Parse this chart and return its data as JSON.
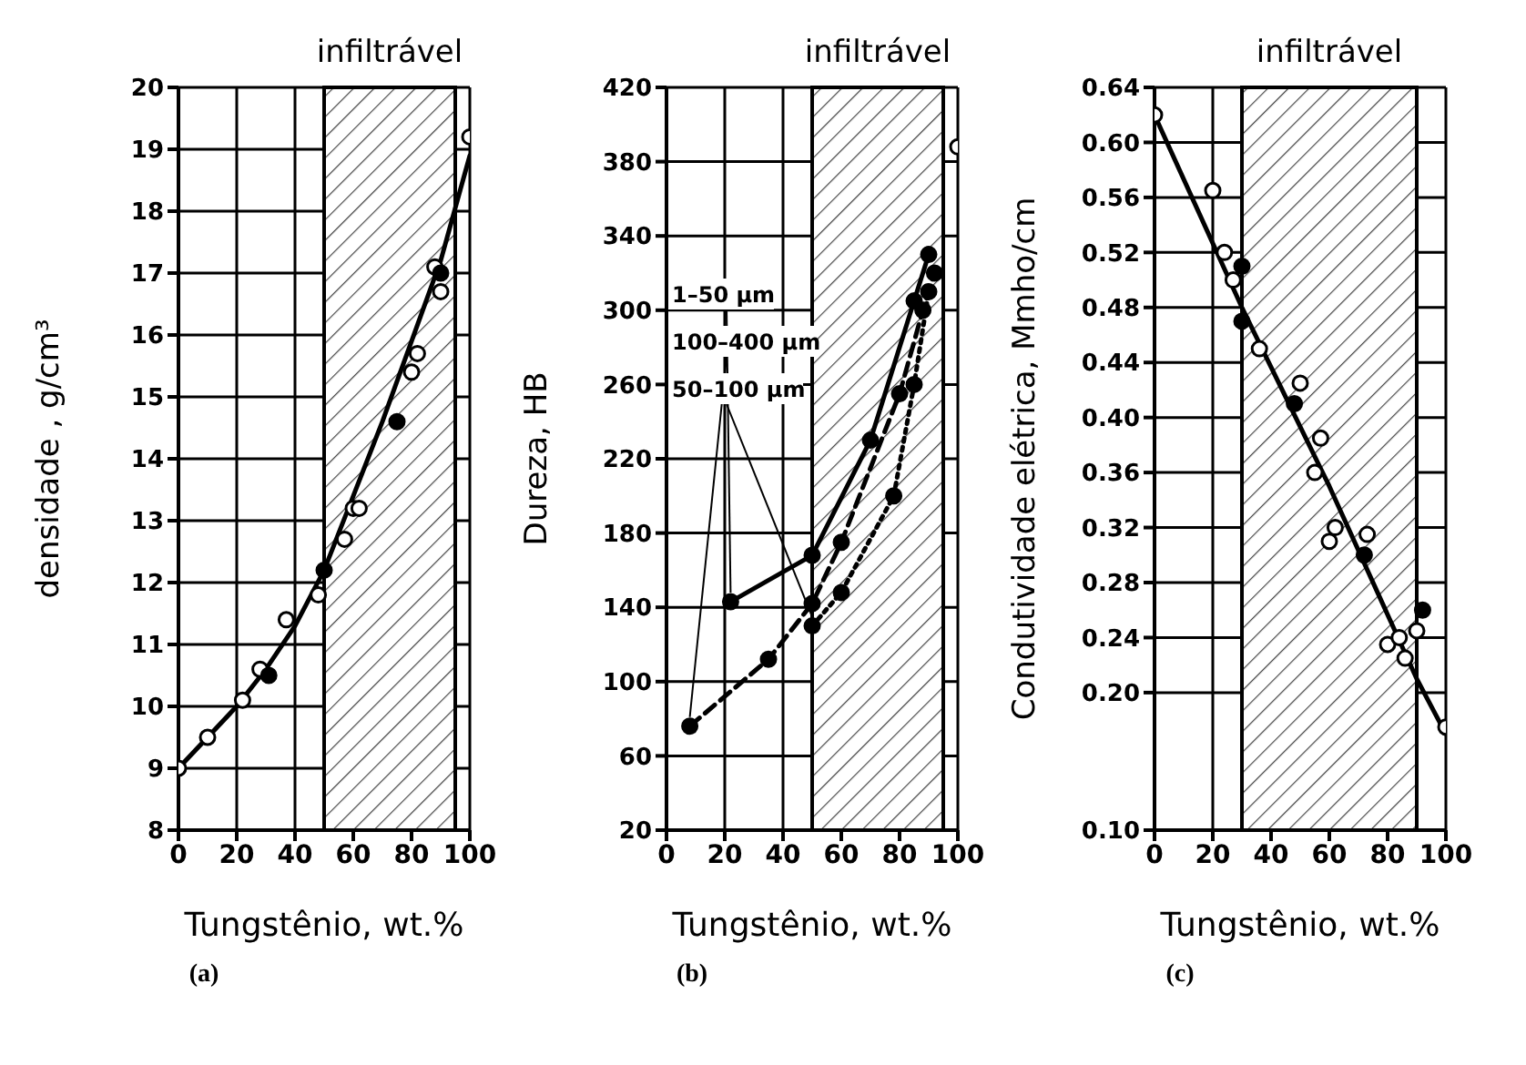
{
  "chart_data": [
    {
      "type": "scatter",
      "subtitle": "(a)",
      "xlabel": "Tungstênio, wt.%",
      "ylabel": "densidade , g/cm³",
      "xlim": [
        0,
        100
      ],
      "xticks": [
        0,
        20,
        40,
        60,
        80,
        100
      ],
      "ylim": [
        8,
        20
      ],
      "yticks": [
        8,
        9,
        10,
        11,
        12,
        13,
        14,
        15,
        16,
        17,
        18,
        19,
        20
      ],
      "grid": true,
      "marker": "circle",
      "bands": [
        {
          "axis": "x",
          "from": 50,
          "to": 95,
          "label": "infiltrável"
        }
      ],
      "series": [
        {
          "type": "line",
          "marker": "none",
          "color": "#000000",
          "x": [
            0,
            20,
            30,
            40,
            50,
            60,
            70,
            80,
            90,
            100
          ],
          "values": [
            9,
            10,
            10.6,
            11.3,
            12.2,
            13.4,
            14.6,
            15.9,
            17.2,
            18.9
          ]
        },
        {
          "color": "#ffffff",
          "x": [
            0,
            10,
            22,
            28,
            37,
            48,
            57,
            60,
            62,
            80,
            82,
            88,
            90,
            100
          ],
          "values": [
            9,
            9.5,
            10.1,
            10.6,
            11.4,
            11.8,
            12.7,
            13.2,
            13.2,
            15.4,
            15.7,
            17.1,
            16.7,
            19.2
          ]
        },
        {
          "color": "#000000",
          "x": [
            31,
            50,
            75,
            90
          ],
          "values": [
            10.5,
            12.2,
            14.6,
            17
          ]
        }
      ]
    },
    {
      "type": "line",
      "subtitle": "(b)",
      "xlabel": "Tungstênio, wt.%",
      "ylabel": "Dureza, HB",
      "xlim": [
        0,
        100
      ],
      "xticks": [
        0,
        20,
        40,
        60,
        80,
        100
      ],
      "ylim": [
        20,
        420
      ],
      "yticks": [
        20,
        60,
        100,
        140,
        180,
        220,
        260,
        300,
        340,
        380,
        420
      ],
      "grid": true,
      "bands": [
        {
          "axis": "x",
          "from": 50,
          "to": 95,
          "label": "infiltrável"
        }
      ],
      "series": [
        {
          "name": "1–50 µm",
          "color": "#000000",
          "line_style": "solid",
          "marker": "circle",
          "x": [
            22,
            50,
            70,
            85,
            90
          ],
          "values": [
            143,
            168,
            230,
            305,
            330
          ]
        },
        {
          "name": "100–400 µm",
          "color": "#000000",
          "line_style": "dashed",
          "marker": "circle",
          "x": [
            8,
            35,
            50,
            60,
            80,
            88,
            92
          ],
          "values": [
            76,
            112,
            142,
            175,
            255,
            300,
            320
          ]
        },
        {
          "name": "50–100 µm",
          "color": "#000000",
          "line_style": "dotted",
          "marker": "circle",
          "x": [
            50,
            60,
            78,
            85,
            90
          ],
          "values": [
            130,
            148,
            200,
            260,
            310
          ]
        },
        {
          "type": "scatter",
          "color": "#ffffff",
          "marker": "circle",
          "x": [
            100
          ],
          "values": [
            388
          ]
        }
      ]
    },
    {
      "type": "scatter",
      "subtitle": "(c)",
      "xlabel": "Tungstênio, wt.%",
      "ylabel": "Condutividade elétrica, Mmho/cm",
      "xlim": [
        0,
        100
      ],
      "xticks": [
        0,
        20,
        40,
        60,
        80,
        100
      ],
      "ylim": [
        0.1,
        0.64
      ],
      "yticks": [
        {
          "value": 0.1,
          "label": "0.10"
        },
        {
          "value": 0.2,
          "label": "0.20"
        },
        0.24,
        0.28,
        0.32,
        0.36,
        {
          "value": 0.4,
          "label": "0.40"
        },
        0.44,
        0.48,
        0.52,
        0.56,
        {
          "value": 0.6,
          "label": "0.60"
        },
        0.64
      ],
      "grid": true,
      "marker": "circle",
      "bands": [
        {
          "axis": "x",
          "from": 30,
          "to": 90,
          "label": "infiltrável"
        }
      ],
      "series": [
        {
          "type": "line",
          "marker": "none",
          "color": "#000000",
          "x": [
            0,
            30,
            60,
            90,
            100
          ],
          "values": [
            0.62,
            0.48,
            0.35,
            0.21,
            0.17
          ]
        },
        {
          "color": "#ffffff",
          "x": [
            0,
            20,
            24,
            27,
            36,
            50,
            57,
            55,
            62,
            60,
            73,
            80,
            84,
            86,
            90,
            100
          ],
          "values": [
            0.62,
            0.565,
            0.52,
            0.5,
            0.45,
            0.425,
            0.385,
            0.36,
            0.32,
            0.31,
            0.315,
            0.235,
            0.24,
            0.225,
            0.245,
            0.175
          ]
        },
        {
          "color": "#000000",
          "x": [
            30,
            30,
            48,
            72,
            92
          ],
          "values": [
            0.51,
            0.47,
            0.41,
            0.3,
            0.26
          ]
        }
      ]
    }
  ]
}
